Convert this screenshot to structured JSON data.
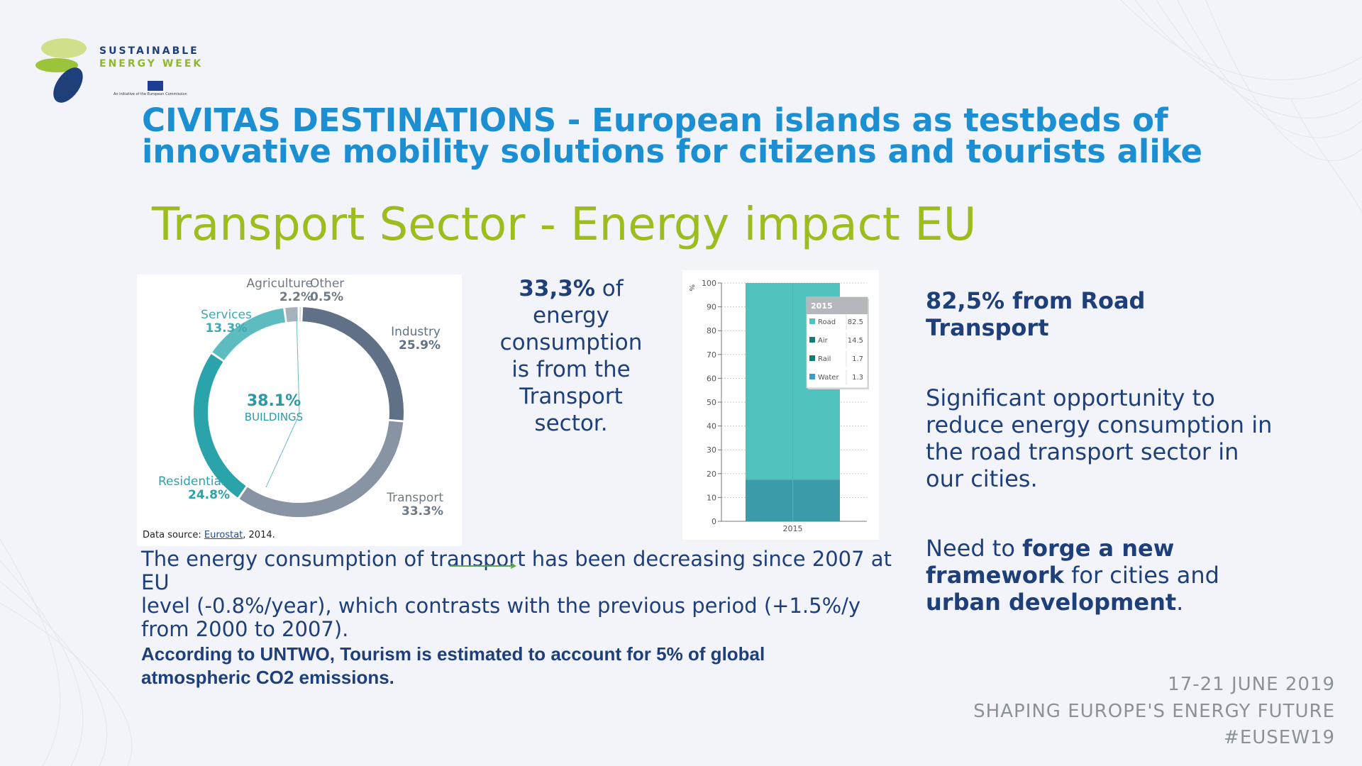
{
  "logo": {
    "line1": "SUSTAINABLE",
    "line2": "ENERGY WEEK",
    "tagline": "An initiative of the European Commission"
  },
  "title": {
    "line1": "CIVITAS DESTINATIONS - European islands as testbeds of",
    "line2": "innovative mobility solutions for citizens and tourists alike"
  },
  "subtitle": "Transport Sector - Energy impact EU",
  "donut": {
    "center_value": "38.1%",
    "center_label": "BUILDINGS",
    "source_prefix": "Data source: ",
    "source_link": "Eurostat",
    "source_suffix": ", 2014.",
    "colors": {
      "industry": "#5f7087",
      "transport": "#8894a4",
      "residential": "#2aa4aa",
      "services": "#5cbcc0",
      "agriculture": "#a7b3bc",
      "other": "#cdd4da"
    },
    "segments": [
      {
        "name": "Agriculture",
        "value": "2.2%"
      },
      {
        "name": "Other",
        "value": "0.5%"
      },
      {
        "name": "Services",
        "value": "13.3%"
      },
      {
        "name": "Industry",
        "value": "25.9%"
      },
      {
        "name": "Residential",
        "value": "24.8%"
      },
      {
        "name": "Transport",
        "value": "33.3%"
      }
    ]
  },
  "mid": {
    "bold": "33,3%",
    "rest_line1": " of",
    "line2": "energy",
    "line3": "consumption",
    "line4": "is from the",
    "line5": "Transport",
    "line6": "sector."
  },
  "chart_data": {
    "type": "bar",
    "stacked": true,
    "categories": [
      "2015"
    ],
    "series": [
      {
        "name": "Road",
        "values": [
          82.5
        ]
      },
      {
        "name": "Air",
        "values": [
          14.5
        ]
      },
      {
        "name": "Rail",
        "values": [
          1.7
        ]
      },
      {
        "name": "Water",
        "values": [
          1.3
        ]
      }
    ],
    "ylabel": "%",
    "ylim": [
      0,
      100
    ],
    "yticks": [
      0,
      10,
      20,
      30,
      40,
      50,
      60,
      70,
      80,
      90,
      100
    ],
    "tooltip_title": "2015",
    "colors": {
      "Road": "#4fc2bd",
      "Air": "#147a78",
      "Rail": "#147a78",
      "Water": "#3d9bc7",
      "lower_block": "#3a9ca8"
    }
  },
  "right": {
    "heading_line1": "82,5% from Road",
    "heading_line2": "Transport",
    "p1_line1": "Significant opportunity to",
    "p1_line2": "reduce energy consumption in",
    "p1_line3": "the road transport sector in",
    "p1_line4": "our cities.",
    "p2_a": "Need to ",
    "p2_b": "forge a new",
    "p2_c": "framework",
    "p2_d": " for cities and",
    "p2_e": "urban development",
    "p2_f": "."
  },
  "para": {
    "line1": "The energy consumption of transport has been decreasing since 2007 at EU",
    "line2": "level (-0.8%/year), which contrasts with the previous period (+1.5%/y",
    "line3": "from 2000 to 2007)."
  },
  "note": {
    "line1": "According to UNTWO, Tourism is estimated to account for 5% of global",
    "line2": "atmospheric CO2 emissions."
  },
  "footer": {
    "dates": "17-21 JUNE 2019",
    "tagline": "SHAPING EUROPE'S ENERGY FUTURE",
    "hashtag": "#EUSEW19"
  }
}
